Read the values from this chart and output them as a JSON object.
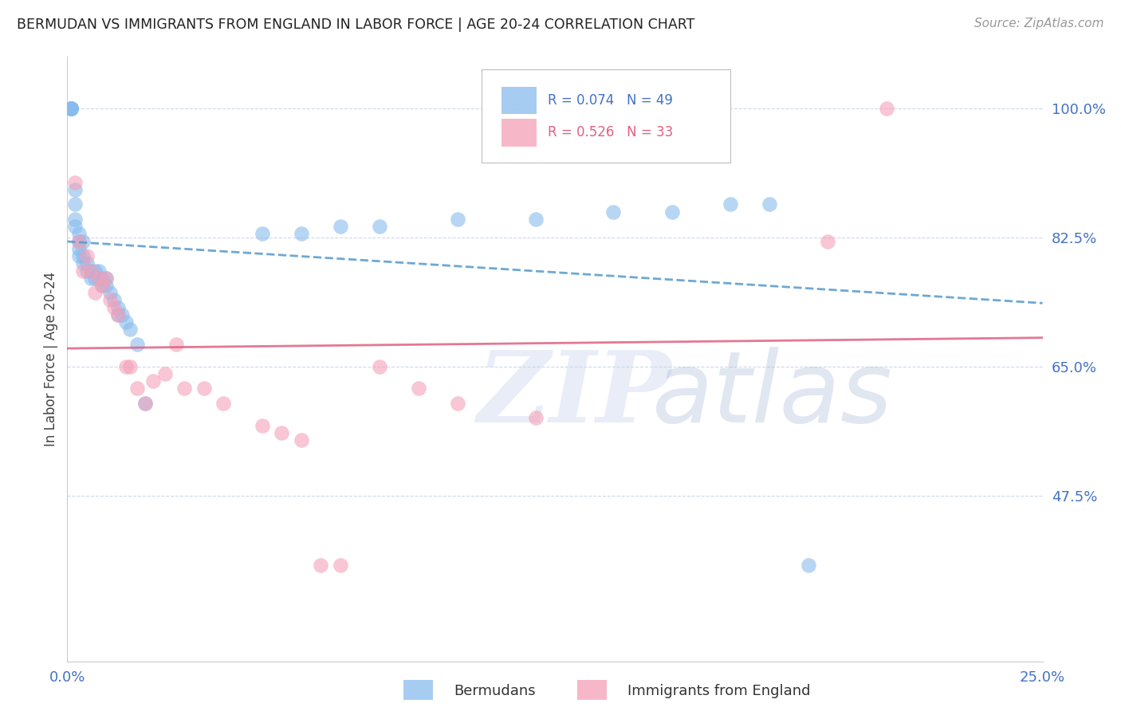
{
  "title": "BERMUDAN VS IMMIGRANTS FROM ENGLAND IN LABOR FORCE | AGE 20-24 CORRELATION CHART",
  "source": "Source: ZipAtlas.com",
  "ylabel": "In Labor Force | Age 20-24",
  "legend_label1": "Bermudans",
  "legend_label2": "Immigrants from England",
  "r1": 0.074,
  "n1": 49,
  "r2": 0.526,
  "n2": 33,
  "color1": "#88bbee",
  "color2": "#f4a0b8",
  "trend1_color": "#5599cc",
  "trend2_color": "#e06080",
  "xlim": [
    0.0,
    0.25
  ],
  "ylim": [
    0.25,
    1.07
  ],
  "yticks": [
    0.475,
    0.65,
    0.825,
    1.0
  ],
  "ytick_labels": [
    "47.5%",
    "65.0%",
    "82.5%",
    "100.0%"
  ],
  "xticks": [
    0.0,
    0.25
  ],
  "xtick_labels": [
    "0.0%",
    "25.0%"
  ],
  "watermark_zip": "ZIP",
  "watermark_atlas": "atlas",
  "background_color": "#ffffff",
  "blue_x": [
    0.001,
    0.001,
    0.001,
    0.001,
    0.001,
    0.001,
    0.002,
    0.002,
    0.002,
    0.002,
    0.003,
    0.003,
    0.003,
    0.003,
    0.004,
    0.004,
    0.004,
    0.005,
    0.005,
    0.006,
    0.006,
    0.007,
    0.007,
    0.008,
    0.008,
    0.009,
    0.009,
    0.01,
    0.01,
    0.011,
    0.012,
    0.013,
    0.013,
    0.014,
    0.015,
    0.016,
    0.018,
    0.02,
    0.05,
    0.06,
    0.07,
    0.08,
    0.1,
    0.12,
    0.14,
    0.155,
    0.17,
    0.18,
    0.19
  ],
  "blue_y": [
    1.0,
    1.0,
    1.0,
    1.0,
    1.0,
    1.0,
    0.89,
    0.87,
    0.85,
    0.84,
    0.83,
    0.82,
    0.81,
    0.8,
    0.8,
    0.79,
    0.82,
    0.79,
    0.78,
    0.78,
    0.77,
    0.78,
    0.77,
    0.78,
    0.77,
    0.77,
    0.76,
    0.77,
    0.76,
    0.75,
    0.74,
    0.72,
    0.73,
    0.72,
    0.71,
    0.7,
    0.68,
    0.6,
    0.83,
    0.83,
    0.84,
    0.84,
    0.85,
    0.85,
    0.86,
    0.86,
    0.87,
    0.87,
    0.38
  ],
  "pink_x": [
    0.002,
    0.003,
    0.004,
    0.005,
    0.006,
    0.007,
    0.008,
    0.009,
    0.01,
    0.011,
    0.012,
    0.013,
    0.015,
    0.016,
    0.018,
    0.02,
    0.022,
    0.025,
    0.028,
    0.03,
    0.035,
    0.04,
    0.05,
    0.055,
    0.06,
    0.065,
    0.07,
    0.08,
    0.09,
    0.1,
    0.12,
    0.195,
    0.21
  ],
  "pink_y": [
    0.9,
    0.82,
    0.78,
    0.8,
    0.78,
    0.75,
    0.77,
    0.76,
    0.77,
    0.74,
    0.73,
    0.72,
    0.65,
    0.65,
    0.62,
    0.6,
    0.63,
    0.64,
    0.68,
    0.62,
    0.62,
    0.6,
    0.57,
    0.56,
    0.55,
    0.38,
    0.38,
    0.65,
    0.62,
    0.6,
    0.58,
    0.82,
    1.0
  ]
}
